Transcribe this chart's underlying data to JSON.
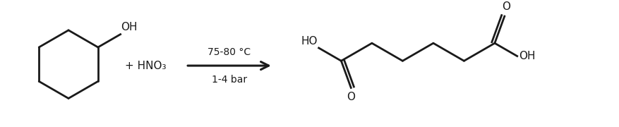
{
  "background_color": "#ffffff",
  "line_color": "#1a1a1a",
  "text_color": "#1a1a1a",
  "line_width": 2.0,
  "arrow_label_top": "75-80 °C",
  "arrow_label_bottom": "1-4 bar",
  "reagent": "+ HNO₃",
  "font_size": 11,
  "font_size_arrow": 10
}
